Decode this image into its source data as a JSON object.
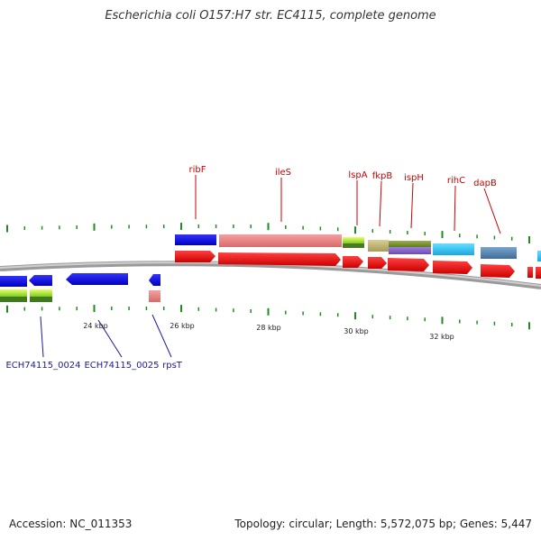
{
  "title": "Escherichia coli O157:H7 str. EC4115, complete genome",
  "footer": {
    "accession": "Accession: NC_011353",
    "summary": "Topology: circular; Length: 5,572,075 bp; Genes: 5,447"
  },
  "colors": {
    "label_top": "#cc0000",
    "label_bottom": "#1a1aa0",
    "tick": "#228b22",
    "backbone": "#888888"
  },
  "axis_labels": [
    "24 kbp",
    "26 kbp",
    "28 kbp",
    "30 kbp",
    "32 kbp"
  ],
  "top_labels": [
    "ribF",
    "ileS",
    "lspA",
    "fkpB",
    "ispH",
    "rihC",
    "dapB"
  ],
  "bottom_labels": [
    "ECH74115_0024",
    "ECH74115_0025",
    "rpsT"
  ]
}
